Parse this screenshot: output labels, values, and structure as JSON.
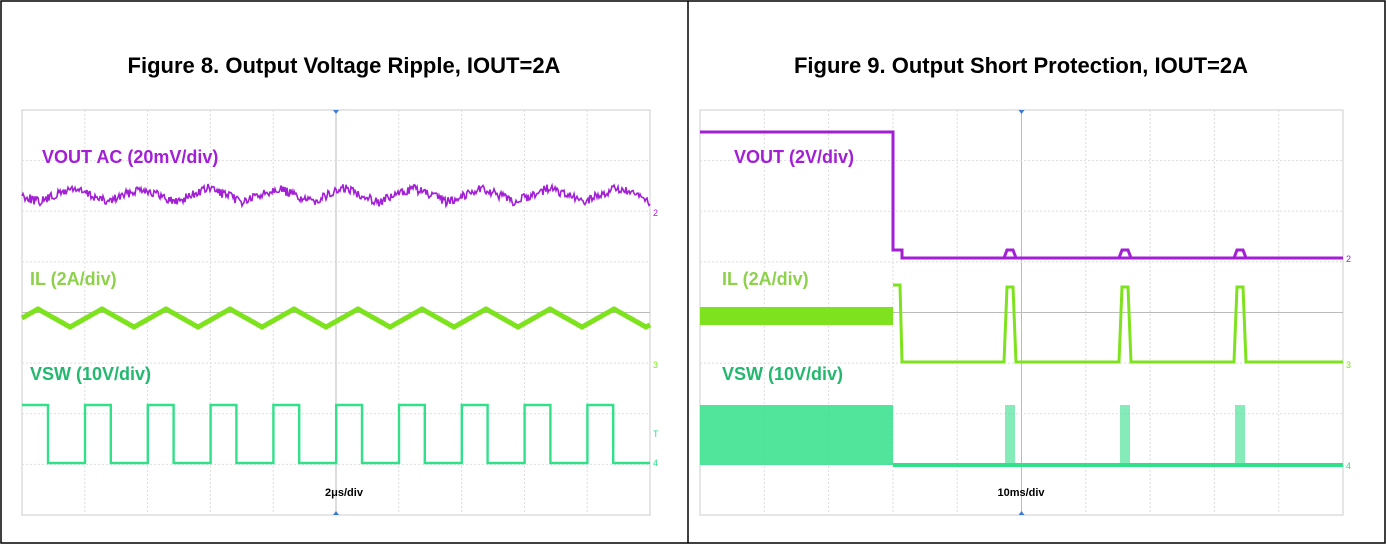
{
  "panels": [
    {
      "title": "Figure 8. Output Voltage Ripple, IOUT=2A",
      "traces": [
        "VOUT AC (20mV/div)",
        "IL (2A/div)",
        "VSW (10V/div)"
      ],
      "timebase": "2μs/div",
      "markers": [
        "2",
        "3",
        "T",
        "4"
      ]
    },
    {
      "title": "Figure 9. Output Short Protection, IOUT=2A",
      "traces": [
        "VOUT (2V/div)",
        "IL (2A/div)",
        "VSW (10V/div)"
      ],
      "timebase": "10ms/div",
      "markers": [
        "2",
        "3",
        "4"
      ]
    }
  ]
}
